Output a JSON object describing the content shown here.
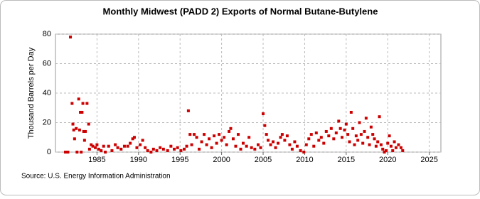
{
  "chart_data": {
    "type": "scatter",
    "title": "Monthly Midwest (PADD 2) Exports of Normal Butane-Butylene",
    "y_label": "Thousand Barrels per Day",
    "source": "Source: U.S. Energy Information Administration",
    "color": "#cc0000",
    "grid": true,
    "xlim": [
      1980,
      2026.4
    ],
    "ylim": [
      0,
      80
    ],
    "xticks": [
      1985,
      1990,
      1995,
      2000,
      2005,
      2010,
      2015,
      2020,
      2025
    ],
    "yticks": [
      0,
      20,
      40,
      60,
      80
    ],
    "x": [
      1981.2,
      1981.5,
      1981.8,
      1982.0,
      1982.1,
      1982.2,
      1982.3,
      1982.5,
      1982.6,
      1982.8,
      1982.9,
      1983.0,
      1983.1,
      1983.2,
      1983.3,
      1983.4,
      1983.5,
      1983.6,
      1983.8,
      1984.0,
      1984.1,
      1984.3,
      1984.5,
      1984.8,
      1985.0,
      1985.2,
      1985.5,
      1985.8,
      1986.0,
      1986.4,
      1986.8,
      1987.2,
      1987.5,
      1987.9,
      1988.3,
      1988.7,
      1989.0,
      1989.3,
      1989.5,
      1989.8,
      1990.2,
      1990.5,
      1990.8,
      1991.1,
      1991.5,
      1991.8,
      1992.2,
      1992.6,
      1993.0,
      1993.5,
      1993.9,
      1994.3,
      1994.7,
      1995.1,
      1995.5,
      1995.8,
      1996.0,
      1996.2,
      1996.4,
      1996.7,
      1997.0,
      1997.3,
      1997.6,
      1997.9,
      1998.2,
      1998.5,
      1998.8,
      1999.1,
      1999.4,
      1999.7,
      2000.0,
      2000.3,
      2000.6,
      2000.9,
      2001.1,
      2001.4,
      2001.7,
      2002.0,
      2002.3,
      2002.6,
      2003.0,
      2003.3,
      2003.6,
      2004.0,
      2004.4,
      2004.7,
      2005.0,
      2005.2,
      2005.4,
      2005.6,
      2005.9,
      2006.2,
      2006.5,
      2006.8,
      2007.1,
      2007.3,
      2007.6,
      2007.9,
      2008.2,
      2008.5,
      2008.8,
      2009.1,
      2009.5,
      2009.9,
      2010.2,
      2010.5,
      2010.8,
      2011.1,
      2011.4,
      2011.7,
      2012.0,
      2012.3,
      2012.6,
      2012.9,
      2013.2,
      2013.5,
      2013.8,
      2014.1,
      2014.3,
      2014.5,
      2014.8,
      2015.0,
      2015.2,
      2015.4,
      2015.6,
      2015.8,
      2016.0,
      2016.2,
      2016.4,
      2016.6,
      2016.8,
      2017.0,
      2017.2,
      2017.4,
      2017.6,
      2017.8,
      2018.0,
      2018.2,
      2018.4,
      2018.6,
      2018.8,
      2019.0,
      2019.2,
      2019.4,
      2019.6,
      2019.8,
      2020.0,
      2020.2,
      2020.4,
      2020.6,
      2020.8,
      2021.0,
      2021.3,
      2021.6,
      2021.8
    ],
    "values": [
      0,
      0,
      78,
      33,
      19,
      15,
      9,
      16,
      0,
      36,
      15,
      27,
      0,
      27,
      33,
      14,
      8,
      14,
      33,
      19,
      2,
      5,
      4,
      3,
      5,
      2,
      1,
      4,
      0,
      4,
      1,
      5,
      3,
      2,
      4,
      4,
      6,
      9,
      10,
      3,
      5,
      8,
      3,
      1,
      0,
      2,
      1,
      3,
      2,
      1,
      4,
      2,
      3,
      1,
      2,
      4,
      28,
      12,
      5,
      12,
      10,
      2,
      7,
      12,
      5,
      9,
      3,
      11,
      6,
      12,
      8,
      10,
      5,
      14,
      16,
      9,
      4,
      12,
      2,
      6,
      4,
      10,
      3,
      2,
      5,
      3,
      26,
      18,
      12,
      8,
      5,
      7,
      3,
      6,
      10,
      12,
      8,
      11,
      5,
      2,
      7,
      4,
      1,
      0,
      5,
      9,
      12,
      4,
      13,
      8,
      10,
      6,
      14,
      11,
      16,
      9,
      13,
      21,
      16,
      10,
      15,
      19,
      12,
      7,
      27,
      16,
      5,
      11,
      8,
      20,
      12,
      6,
      14,
      23,
      10,
      5,
      17,
      12,
      9,
      4,
      7,
      24,
      5,
      2,
      0,
      1,
      6,
      11,
      4,
      1,
      7,
      3,
      5,
      3,
      1
    ]
  }
}
